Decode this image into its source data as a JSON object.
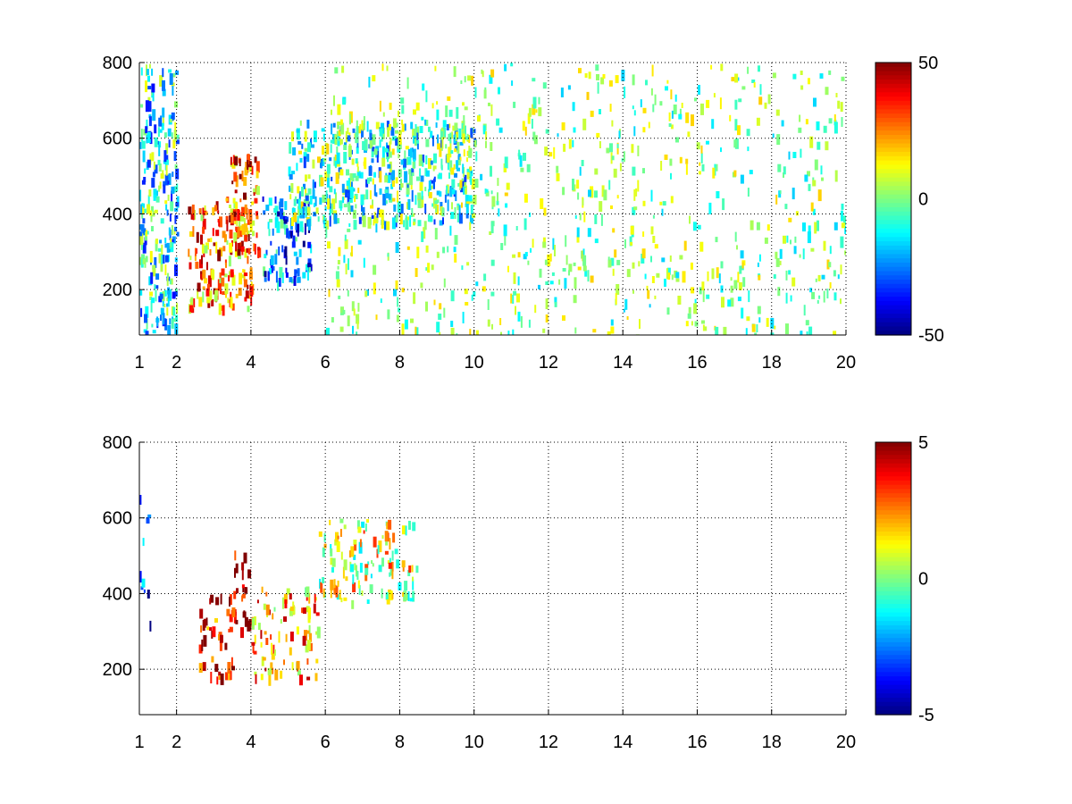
{
  "chart_data": [
    {
      "type": "heatmap",
      "title": "",
      "xlabel": "",
      "ylabel": "",
      "xlim": [
        1,
        20
      ],
      "ylim": [
        80,
        800
      ],
      "grid": true,
      "x_tick_labels": [
        "1",
        "2",
        "4",
        "6",
        "8",
        "10",
        "12",
        "14",
        "16",
        "18",
        "20"
      ],
      "x_ticks": [
        1,
        2,
        4,
        6,
        8,
        10,
        12,
        14,
        16,
        18,
        20
      ],
      "y_tick_labels": [
        "200",
        "400",
        "600",
        "800"
      ],
      "y_ticks": [
        200,
        400,
        600,
        800
      ],
      "colorbar": {
        "min": -50,
        "max": 50,
        "tick_labels": [
          "50",
          "0",
          "-50"
        ],
        "ticks": [
          50,
          0,
          -50
        ],
        "colormap": "jet"
      },
      "regions": [
        {
          "x_range": [
            2.3,
            4.0
          ],
          "y_range": [
            150,
            450
          ],
          "level": 25
        },
        {
          "x_range": [
            3.4,
            4.2
          ],
          "y_range": [
            300,
            560
          ],
          "level": 28
        },
        {
          "x_range": [
            4.3,
            5.6
          ],
          "y_range": [
            220,
            450
          ],
          "level": -25
        },
        {
          "x_range": [
            5.0,
            10.0
          ],
          "y_range": [
            380,
            650
          ],
          "level": -8
        },
        {
          "x_range": [
            1.0,
            2.0
          ],
          "y_range": [
            80,
            800
          ],
          "level": -12
        },
        {
          "x_range": [
            6.0,
            20.0
          ],
          "y_range": [
            80,
            800
          ],
          "level": 0
        }
      ]
    },
    {
      "type": "heatmap",
      "title": "",
      "xlabel": "",
      "ylabel": "",
      "xlim": [
        1,
        20
      ],
      "ylim": [
        80,
        800
      ],
      "grid": true,
      "x_tick_labels": [
        "1",
        "2",
        "4",
        "6",
        "8",
        "10",
        "12",
        "14",
        "16",
        "18",
        "20"
      ],
      "x_ticks": [
        1,
        2,
        4,
        6,
        8,
        10,
        12,
        14,
        16,
        18,
        20
      ],
      "y_tick_labels": [
        "200",
        "400",
        "600",
        "800"
      ],
      "y_ticks": [
        200,
        400,
        600,
        800
      ],
      "colorbar": {
        "min": -5,
        "max": 5,
        "tick_labels": [
          "5",
          "0",
          "-5"
        ],
        "ticks": [
          5,
          0,
          -5
        ],
        "colormap": "jet"
      },
      "regions": [
        {
          "x_range": [
            2.6,
            3.5
          ],
          "y_range": [
            180,
            400
          ],
          "level": 4
        },
        {
          "x_range": [
            3.4,
            4.0
          ],
          "y_range": [
            300,
            520
          ],
          "level": 5
        },
        {
          "x_range": [
            4.0,
            5.8
          ],
          "y_range": [
            180,
            420
          ],
          "level": 2
        },
        {
          "x_range": [
            5.8,
            8.5
          ],
          "y_range": [
            380,
            600
          ],
          "level": 1
        },
        {
          "x_range": [
            1.0,
            1.3
          ],
          "y_range": [
            300,
            780
          ],
          "level": -3
        }
      ]
    }
  ]
}
